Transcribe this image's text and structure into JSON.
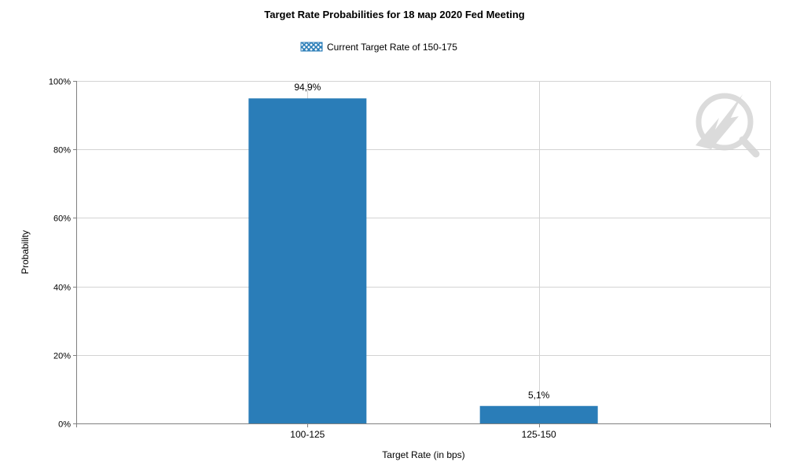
{
  "chart_data": {
    "type": "bar",
    "title": "Target Rate Probabilities for 18 мар 2020 Fed Meeting",
    "legend": {
      "label": "Current Target Rate of 150-175",
      "placement": "top-center"
    },
    "xlabel": "Target Rate (in bps)",
    "ylabel": "Probability",
    "categories": [
      "100-125",
      "125-150"
    ],
    "values": [
      94.9,
      5.1
    ],
    "data_labels": [
      "94,9%",
      "5,1%"
    ],
    "ylim": [
      0,
      100
    ],
    "yticks": [
      0,
      20,
      40,
      60,
      80,
      100
    ],
    "ytick_labels": [
      "0%",
      "20%",
      "40%",
      "60%",
      "80%",
      "100%"
    ],
    "grid": true,
    "colors": {
      "bar": "#2a7db8",
      "grid": "#d3d3d3",
      "axis": "#808080",
      "legend_swatch": "#2a7db8"
    }
  },
  "watermark": {
    "icon": "cme-fedwatch-logo-icon"
  }
}
